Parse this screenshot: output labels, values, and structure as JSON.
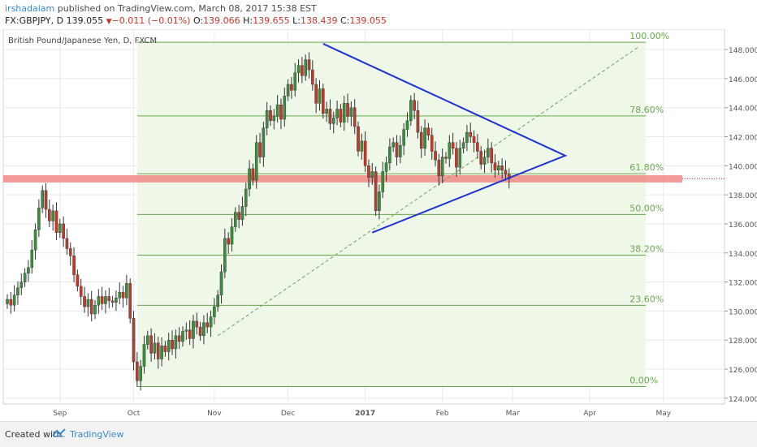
{
  "header": {
    "author": "irshadalam",
    "published": "published on TradingView.com, March 08, 2017 15:38 EST"
  },
  "ohlc": {
    "symbol": "FX:GBPJPY, D",
    "last": "139.055",
    "change": "−0.011 (−0.01%)",
    "o_label": "O:",
    "o": "139.066",
    "h_label": "H:",
    "h": "139.655",
    "l_label": "L:",
    "l": "138.439",
    "c_label": "C:",
    "c": "139.055"
  },
  "footer": {
    "created": "Created with",
    "brand": "TradingView"
  },
  "colors": {
    "up": "#3d8c40",
    "down": "#c0392b",
    "fib": "#6aa84f",
    "fibFill": "#eef7e8",
    "triangle": "#1f33d6",
    "support": "#f08a87",
    "grid": "#eaeaea",
    "axisText": "#555555"
  },
  "chart_data": {
    "type": "candlestick",
    "title": "British Pound/Japanese Yen, D, FXCM",
    "ylim": [
      123.6,
      149.4
    ],
    "y_ticks": [
      124,
      126,
      128,
      130,
      132,
      134,
      136,
      138,
      140,
      142,
      144,
      146,
      148
    ],
    "y_tick_labels": [
      "124.000",
      "126.000",
      "128.000",
      "130.000",
      "132.000",
      "134.000",
      "136.000",
      "138.000",
      "140.000",
      "142.000",
      "144.000",
      "146.000",
      "148.000"
    ],
    "x_ticks": [
      {
        "label": "Sep",
        "i": 15
      },
      {
        "label": "Oct",
        "i": 36
      },
      {
        "label": "Nov",
        "i": 59
      },
      {
        "label": "Dec",
        "i": 80
      },
      {
        "label": "2017",
        "i": 102
      },
      {
        "label": "Feb",
        "i": 124
      },
      {
        "label": "Mar",
        "i": 144
      },
      {
        "label": "Apr",
        "i": 166
      },
      {
        "label": "May",
        "i": 187
      }
    ],
    "fibonacci": {
      "start_i": 37,
      "end_i": 182,
      "low": 124.8,
      "high": 148.5,
      "levels": [
        {
          "label": "0.00%",
          "value": 124.8
        },
        {
          "label": "23.60%",
          "value": 130.39
        },
        {
          "label": "38.20%",
          "value": 133.85
        },
        {
          "label": "50.00%",
          "value": 136.65
        },
        {
          "label": "61.80%",
          "value": 139.45
        },
        {
          "label": "78.60%",
          "value": 143.43
        },
        {
          "label": "100.00%",
          "value": 148.5
        }
      ]
    },
    "support_zone": {
      "low": 138.85,
      "high": 139.35
    },
    "triangle": [
      {
        "i": 90,
        "v": 148.4
      },
      {
        "i": 159,
        "v": 140.7
      },
      {
        "i": 104,
        "v": 135.4
      }
    ],
    "trendline": {
      "from": {
        "i": 60,
        "v": 128.3
      },
      "to": {
        "i": 180,
        "v": 148.2
      }
    },
    "candles_start_i": 0,
    "closes": [
      130.8,
      130.4,
      131.1,
      131.6,
      132.0,
      132.6,
      133.0,
      134.2,
      135.6,
      137.1,
      138.3,
      137.0,
      136.2,
      136.9,
      135.4,
      136.0,
      135.0,
      134.3,
      133.8,
      132.5,
      131.7,
      131.0,
      130.3,
      130.8,
      129.8,
      130.4,
      131.0,
      130.5,
      131.0,
      130.7,
      130.6,
      130.9,
      131.3,
      130.9,
      131.9,
      129.5,
      126.5,
      125.2,
      126.2,
      127.7,
      128.3,
      127.1,
      127.8,
      126.7,
      127.6,
      127.2,
      128.0,
      127.4,
      128.3,
      127.9,
      128.6,
      128.7,
      128.1,
      129.3,
      128.9,
      128.3,
      129.2,
      128.9,
      129.6,
      130.3,
      131.1,
      132.7,
      135.0,
      134.6,
      135.8,
      136.8,
      136.3,
      137.2,
      138.4,
      139.8,
      139.0,
      141.6,
      140.6,
      142.6,
      143.8,
      143.1,
      143.4,
      144.2,
      143.2,
      144.8,
      145.6,
      145.2,
      146.4,
      146.9,
      146.2,
      147.3,
      146.6,
      145.6,
      144.3,
      145.3,
      143.6,
      143.9,
      142.9,
      143.3,
      143.9,
      143.0,
      144.3,
      143.4,
      144.0,
      142.7,
      141.0,
      141.7,
      140.0,
      139.2,
      139.6,
      136.9,
      138.2,
      139.6,
      140.2,
      141.3,
      141.6,
      140.6,
      141.4,
      142.5,
      143.1,
      144.5,
      143.8,
      142.3,
      141.2,
      142.6,
      142.1,
      141.0,
      140.4,
      139.3,
      140.6,
      140.5,
      141.6,
      141.2,
      139.9,
      141.2,
      141.6,
      142.3,
      142.0,
      141.6,
      141.0,
      140.1,
      140.6,
      141.2,
      140.2,
      139.7,
      140.0,
      139.7,
      139.4,
      139.1
    ]
  }
}
